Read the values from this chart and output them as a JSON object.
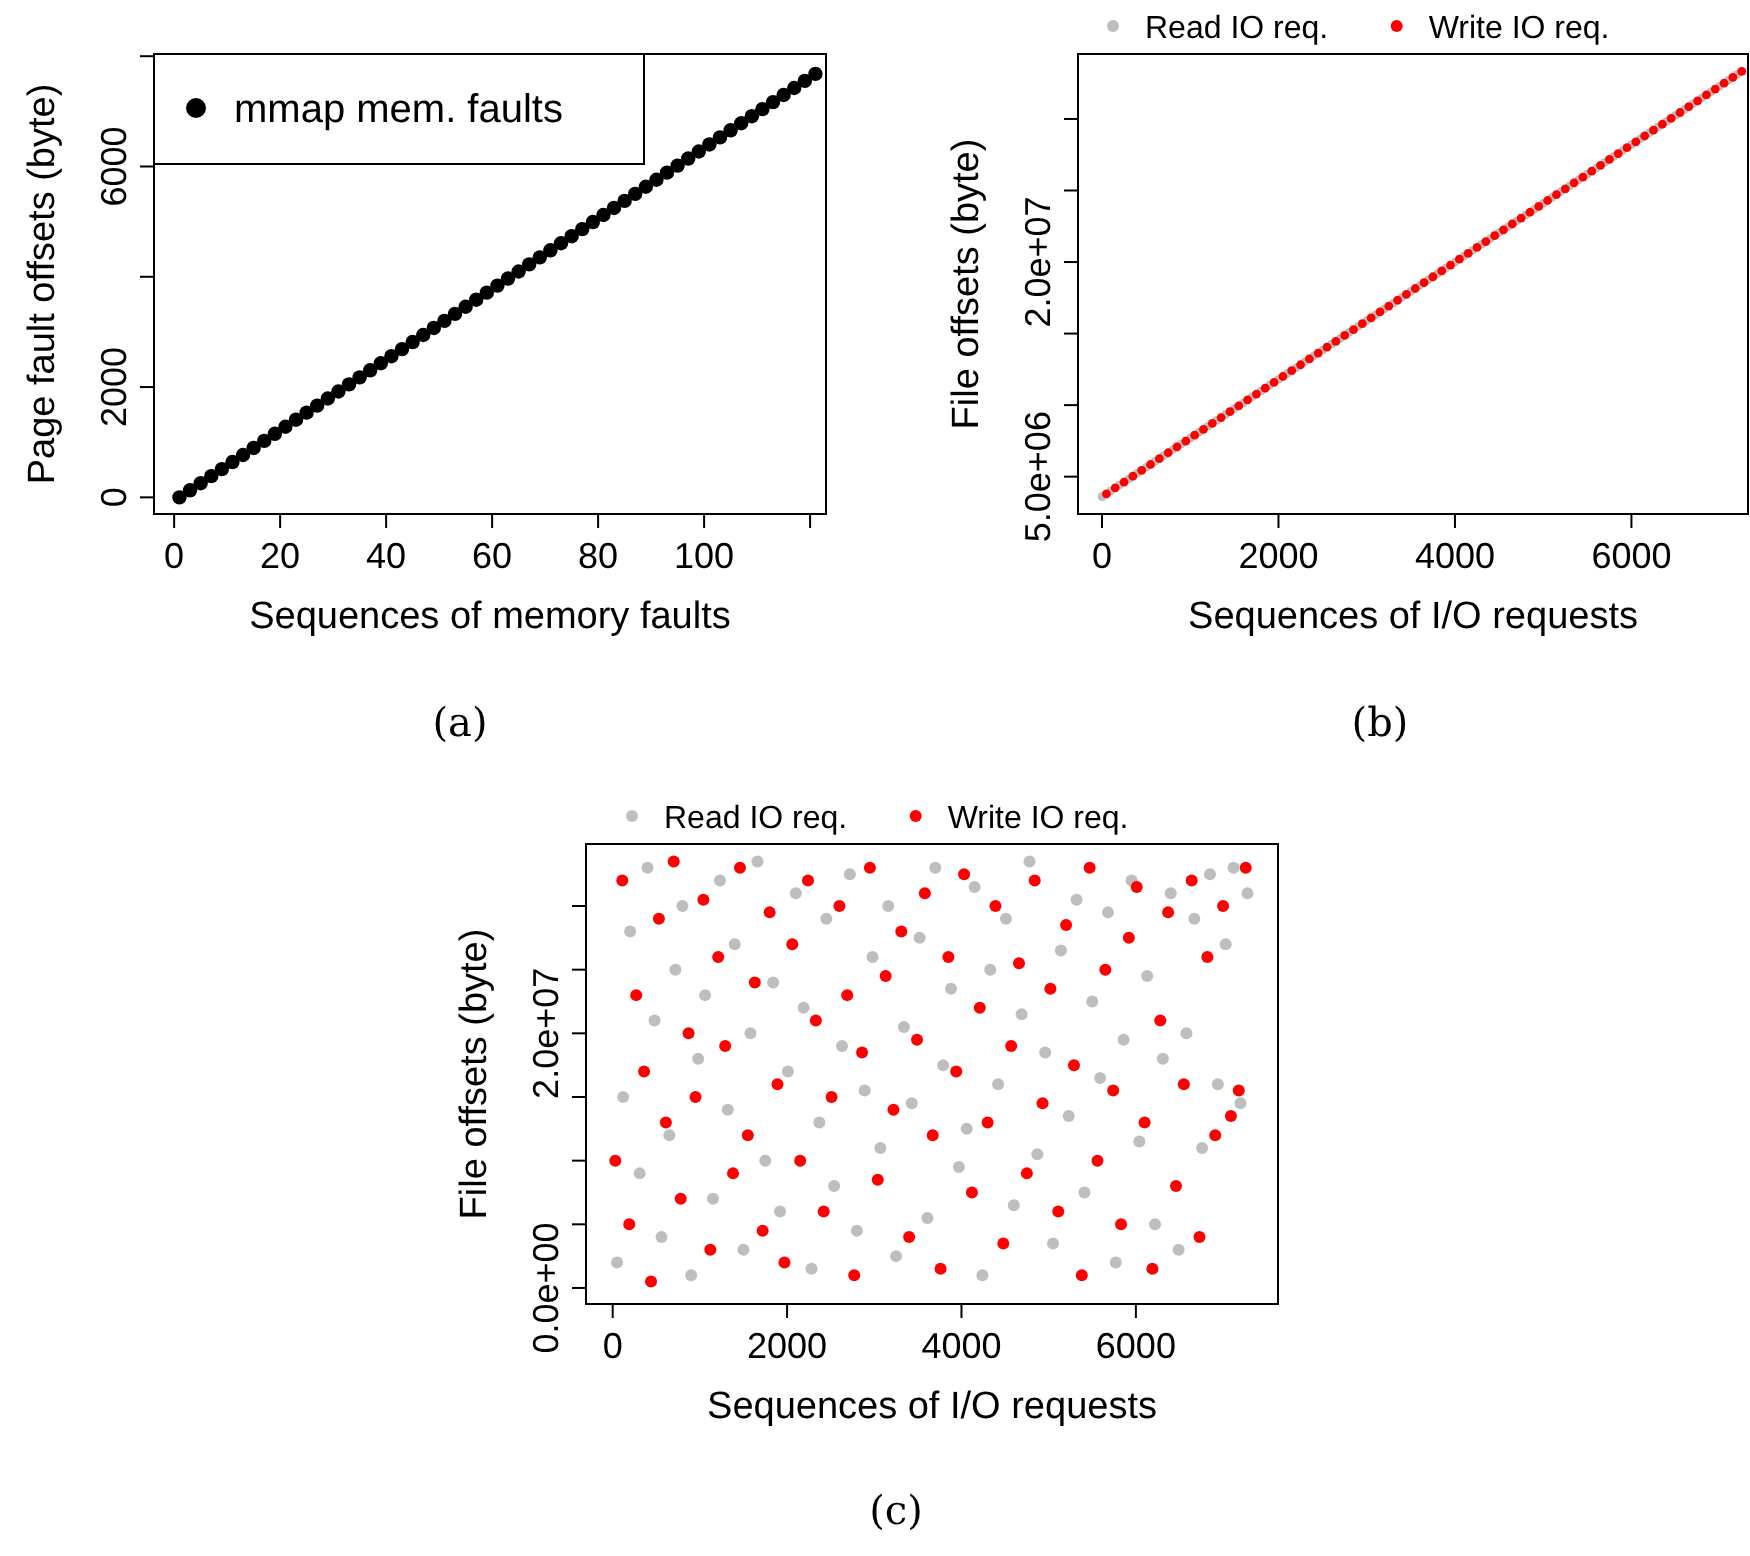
{
  "chart_data": [
    {
      "type": "scatter",
      "xlabel": "Sequences of memory faults",
      "ylabel": "Page fault offsets (byte)",
      "annotations": [
        "(a)"
      ],
      "marker": "circle",
      "legend": "top left",
      "xlim": [
        -3.8,
        123
      ],
      "xticks": [
        0,
        20,
        40,
        60,
        80,
        100,
        {
          "value": 120,
          "label": null
        }
      ],
      "ylim": [
        -302,
        8040
      ],
      "yticks": [
        0,
        2000,
        {
          "value": 4000,
          "label": null
        },
        6000,
        {
          "value": 8000,
          "label": null
        }
      ],
      "series": [
        {
          "name": "mmap mem. faults",
          "color": "#000000",
          "x": [
            1,
            3,
            5,
            7,
            9,
            11,
            13,
            15,
            17,
            19,
            21,
            23,
            25,
            27,
            29,
            31,
            33,
            35,
            37,
            39,
            41,
            43,
            45,
            47,
            49,
            51,
            53,
            55,
            57,
            59,
            61,
            63,
            65,
            67,
            69,
            71,
            73,
            75,
            77,
            79,
            81,
            83,
            85,
            87,
            89,
            91,
            93,
            95,
            97,
            99,
            101,
            103,
            105,
            107,
            109,
            111,
            113,
            115,
            117,
            119,
            121
          ],
          "values": [
            0,
            128,
            256,
            384,
            512,
            640,
            768,
            896,
            1024,
            1152,
            1280,
            1408,
            1536,
            1664,
            1792,
            1920,
            2048,
            2176,
            2304,
            2432,
            2560,
            2688,
            2816,
            2944,
            3072,
            3200,
            3328,
            3456,
            3584,
            3712,
            3840,
            3968,
            4096,
            4224,
            4352,
            4480,
            4608,
            4736,
            4864,
            4992,
            5120,
            5248,
            5376,
            5504,
            5632,
            5760,
            5888,
            6016,
            6144,
            6272,
            6400,
            6528,
            6656,
            6784,
            6912,
            7040,
            7168,
            7296,
            7424,
            7552,
            7680
          ]
        }
      ]
    },
    {
      "type": "scatter",
      "xlabel": "Sequences of I/O requests",
      "ylabel": "File offsets (byte)",
      "annotations": [
        "(b)"
      ],
      "marker": "circle",
      "legend": "top",
      "xlim": [
        -272,
        7321
      ],
      "xticks": [
        0,
        2000,
        4000,
        6000
      ],
      "ylim": [
        2390000,
        34540000
      ],
      "yticks": [
        {
          "value": 5000000,
          "label": "5.0e+06"
        },
        {
          "value": 10000000,
          "label": null
        },
        {
          "value": 15000000,
          "label": null
        },
        {
          "value": 20000000,
          "label": "2.0e+07"
        },
        {
          "value": 25000000,
          "label": null
        },
        {
          "value": 30000000,
          "label": null
        }
      ],
      "series": [
        {
          "name": "Read IO req.",
          "color": "#bebebe",
          "x": [
            0,
            100,
            200,
            300,
            400,
            500,
            600,
            700,
            800,
            900,
            1000,
            1100,
            1200,
            1300,
            1400,
            1500,
            1600,
            1700,
            1800,
            1900,
            2000,
            2100,
            2200,
            2300,
            2400,
            2500,
            2600,
            2700,
            2800,
            2900,
            3000,
            3100,
            3200,
            3300,
            3400,
            3500,
            3600,
            3700,
            3800,
            3900,
            4000,
            4100,
            4200,
            4300,
            4400,
            4500,
            4600,
            4700,
            4800,
            4900,
            5000,
            5100,
            5200,
            5300,
            5400,
            5500,
            5600,
            5700,
            5800,
            5900,
            6000,
            6100,
            6200,
            6300,
            6400,
            6500,
            6600,
            6700,
            6800,
            6900,
            7000,
            7100,
            7200
          ],
          "values": [
            3600000.0,
            4010000.0,
            4420000.0,
            4830000.0,
            5240000.0,
            5650000.0,
            6060000.0,
            6470000.0,
            6880000.0,
            7290000.0,
            7700000.0,
            8110000.0,
            8520000.0,
            8930000.0,
            9340000.0,
            9750000.0,
            10160000.0,
            10570000.0,
            10980000.0,
            11390000.0,
            11800000.0,
            12210000.0,
            12620000.0,
            13030000.0,
            13440000.0,
            13850000.0,
            14260000.0,
            14670000.0,
            15080000.0,
            15490000.0,
            15900000.0,
            16310000.0,
            16720000.0,
            17130000.0,
            17540000.0,
            17950000.0,
            18360000.0,
            18770000.0,
            19180000.0,
            19590000.0,
            20000000.0,
            20410000.0,
            20820000.0,
            21230000.0,
            21640000.0,
            22050000.0,
            22460000.0,
            22870000.0,
            23280000.0,
            23690000.0,
            24100000.0,
            24510000.0,
            24920000.0,
            25330000.0,
            25740000.0,
            26150000.0,
            26560000.0,
            26970000.0,
            27380000.0,
            27790000.0,
            28200000.0,
            28610000.0,
            29020000.0,
            29430000.0,
            29840000.0,
            30250000.0,
            30660000.0,
            31070000.0,
            31480000.0,
            31890000.0,
            32300000.0,
            32710000.0,
            33120000.0
          ]
        },
        {
          "name": "Write IO req.",
          "color": "#ff0000",
          "x": [
            50,
            150,
            250,
            350,
            450,
            550,
            650,
            750,
            850,
            950,
            1050,
            1150,
            1250,
            1350,
            1450,
            1550,
            1650,
            1750,
            1850,
            1950,
            2050,
            2150,
            2250,
            2350,
            2450,
            2550,
            2650,
            2750,
            2850,
            2950,
            3050,
            3150,
            3250,
            3350,
            3450,
            3550,
            3650,
            3750,
            3850,
            3950,
            4050,
            4150,
            4250,
            4350,
            4450,
            4550,
            4650,
            4750,
            4850,
            4950,
            5050,
            5150,
            5250,
            5350,
            5450,
            5550,
            5650,
            5750,
            5850,
            5950,
            6050,
            6150,
            6250,
            6350,
            6450,
            6550,
            6650,
            6750,
            6850,
            6950,
            7050,
            7150,
            7250
          ],
          "values": [
            3800000.0,
            4210000.0,
            4620000.0,
            5030000.0,
            5440000.0,
            5850000.0,
            6260000.0,
            6670000.0,
            7080000.0,
            7490000.0,
            7900000.0,
            8310000.0,
            8720000.0,
            9130000.0,
            9540000.0,
            9950000.0,
            10360000.0,
            10770000.0,
            11180000.0,
            11590000.0,
            12000000.0,
            12410000.0,
            12820000.0,
            13230000.0,
            13640000.0,
            14050000.0,
            14460000.0,
            14870000.0,
            15280000.0,
            15690000.0,
            16100000.0,
            16510000.0,
            16920000.0,
            17330000.0,
            17740000.0,
            18150000.0,
            18560000.0,
            18970000.0,
            19380000.0,
            19790000.0,
            20200000.0,
            20610000.0,
            21020000.0,
            21430000.0,
            21840000.0,
            22250000.0,
            22660000.0,
            23070000.0,
            23480000.0,
            23890000.0,
            24300000.0,
            24710000.0,
            25120000.0,
            25530000.0,
            25940000.0,
            26350000.0,
            26760000.0,
            27170000.0,
            27580000.0,
            27990000.0,
            28400000.0,
            28810000.0,
            29220000.0,
            29630000.0,
            30040000.0,
            30450000.0,
            30860000.0,
            31270000.0,
            31680000.0,
            32090000.0,
            32500000.0,
            32910000.0,
            33320000.0
          ]
        }
      ]
    },
    {
      "type": "scatter",
      "xlabel": "Sequences of I/O requests",
      "ylabel": "File offsets (byte)",
      "annotations": [
        "(c)"
      ],
      "marker": "circle",
      "legend": "top",
      "xlim": [
        -306,
        7630
      ],
      "xticks": [
        0,
        2000,
        4000,
        6000
      ],
      "ylim": [
        -1260000,
        34870000
      ],
      "yticks": [
        {
          "value": 0,
          "label": "0.0e+00"
        },
        {
          "value": 5000000,
          "label": null
        },
        {
          "value": 10000000,
          "label": null
        },
        {
          "value": 15000000,
          "label": null
        },
        {
          "value": 20000000,
          "label": "2.0e+07"
        },
        {
          "value": 25000000,
          "label": null
        },
        {
          "value": 30000000,
          "label": null
        }
      ],
      "series": [
        {
          "name": "Read IO req.",
          "color": "#bebebe",
          "x": [
            50,
            120,
            200,
            310,
            400,
            480,
            560,
            650,
            720,
            800,
            900,
            980,
            1060,
            1150,
            1230,
            1320,
            1400,
            1500,
            1580,
            1660,
            1750,
            1840,
            1920,
            2010,
            2100,
            2190,
            2280,
            2370,
            2450,
            2540,
            2630,
            2720,
            2800,
            2890,
            2980,
            3070,
            3160,
            3250,
            3340,
            3430,
            3520,
            3610,
            3700,
            3790,
            3880,
            3970,
            4060,
            4150,
            4240,
            4330,
            4420,
            4510,
            4600,
            4690,
            4780,
            4870,
            4960,
            5050,
            5140,
            5230,
            5320,
            5410,
            5500,
            5590,
            5680,
            5770,
            5860,
            5950,
            6040,
            6130,
            6220,
            6310,
            6400,
            6490,
            6580,
            6670,
            6760,
            6850,
            6940,
            7030,
            7120,
            7200,
            7280
          ],
          "values": [
            2000000.0,
            15000000.0,
            28000000.0,
            9000000.0,
            33000000.0,
            21000000.0,
            4000000.0,
            12000000.0,
            25000000.0,
            30000000.0,
            1000000.0,
            18000000.0,
            23000000.0,
            7000000.0,
            32000000.0,
            14000000.0,
            27000000.0,
            3000000.0,
            20000000.0,
            33500000.0,
            10000000.0,
            24000000.0,
            6000000.0,
            17000000.0,
            31000000.0,
            22000000.0,
            1500000.0,
            13000000.0,
            29000000.0,
            8000000.0,
            19000000.0,
            32500000.0,
            4500000.0,
            15500000.0,
            26000000.0,
            11000000.0,
            30000000.0,
            2500000.0,
            20500000.0,
            14500000.0,
            27500000.0,
            5500000.0,
            33000000.0,
            17500000.0,
            23500000.0,
            9500000.0,
            12500000.0,
            31500000.0,
            1000000.0,
            25000000.0,
            16000000.0,
            29000000.0,
            6500000.0,
            21500000.0,
            33500000.0,
            10500000.0,
            18500000.0,
            3500000.0,
            26500000.0,
            13500000.0,
            30500000.0,
            7500000.0,
            22500000.0,
            16500000.0,
            29500000.0,
            2000000.0,
            19500000.0,
            32000000.0,
            11500000.0,
            24500000.0,
            5000000.0,
            18000000.0,
            31000000.0,
            3000000.0,
            20000000.0,
            29000000.0,
            11000000.0,
            32500000.0,
            16000000.0,
            27000000.0,
            33000000.0,
            14500000.0,
            31000000.0
          ]
        },
        {
          "name": "Write IO req.",
          "color": "#ff0000",
          "x": [
            30,
            110,
            190,
            270,
            360,
            440,
            530,
            610,
            700,
            780,
            870,
            950,
            1040,
            1120,
            1210,
            1290,
            1380,
            1460,
            1550,
            1630,
            1720,
            1800,
            1890,
            1970,
            2060,
            2150,
            2240,
            2330,
            2420,
            2510,
            2600,
            2690,
            2770,
            2860,
            2950,
            3040,
            3130,
            3220,
            3310,
            3400,
            3490,
            3580,
            3670,
            3760,
            3850,
            3940,
            4030,
            4120,
            4210,
            4300,
            4390,
            4480,
            4570,
            4660,
            4750,
            4840,
            4930,
            5020,
            5110,
            5200,
            5290,
            5380,
            5470,
            5560,
            5650,
            5740,
            5830,
            5920,
            6010,
            6100,
            6190,
            6280,
            6370,
            6460,
            6550,
            6640,
            6730,
            6820,
            6910,
            7000,
            7090,
            7180,
            7260
          ],
          "values": [
            10000000.0,
            32000000.0,
            5000000.0,
            23000000.0,
            17000000.0,
            500000.0,
            29000000.0,
            13000000.0,
            33500000.0,
            7000000.0,
            20000000.0,
            15000000.0,
            30500000.0,
            3000000.0,
            26000000.0,
            19000000.0,
            9000000.0,
            33000000.0,
            12000000.0,
            24000000.0,
            4500000.0,
            29500000.0,
            16000000.0,
            2000000.0,
            27000000.0,
            10000000.0,
            32000000.0,
            21000000.0,
            6000000.0,
            15000000.0,
            30000000.0,
            23000000.0,
            1000000.0,
            18500000.0,
            33000000.0,
            8500000.0,
            24500000.0,
            14000000.0,
            28000000.0,
            4000000.0,
            19500000.0,
            31000000.0,
            12000000.0,
            1500000.0,
            26000000.0,
            17000000.0,
            32500000.0,
            7500000.0,
            22000000.0,
            13000000.0,
            30000000.0,
            3500000.0,
            19000000.0,
            25500000.0,
            9000000.0,
            32000000.0,
            14500000.0,
            23500000.0,
            6000000.0,
            28500000.0,
            17500000.0,
            1000000.0,
            33000000.0,
            10000000.0,
            25000000.0,
            15500000.0,
            5000000.0,
            27500000.0,
            31500000.0,
            13000000.0,
            1500000.0,
            21000000.0,
            29500000.0,
            8000000.0,
            16000000.0,
            32000000.0,
            4000000.0,
            26000000.0,
            12000000.0,
            30000000.0,
            13500000.0,
            15500000.0,
            33000000.0
          ]
        }
      ]
    }
  ]
}
